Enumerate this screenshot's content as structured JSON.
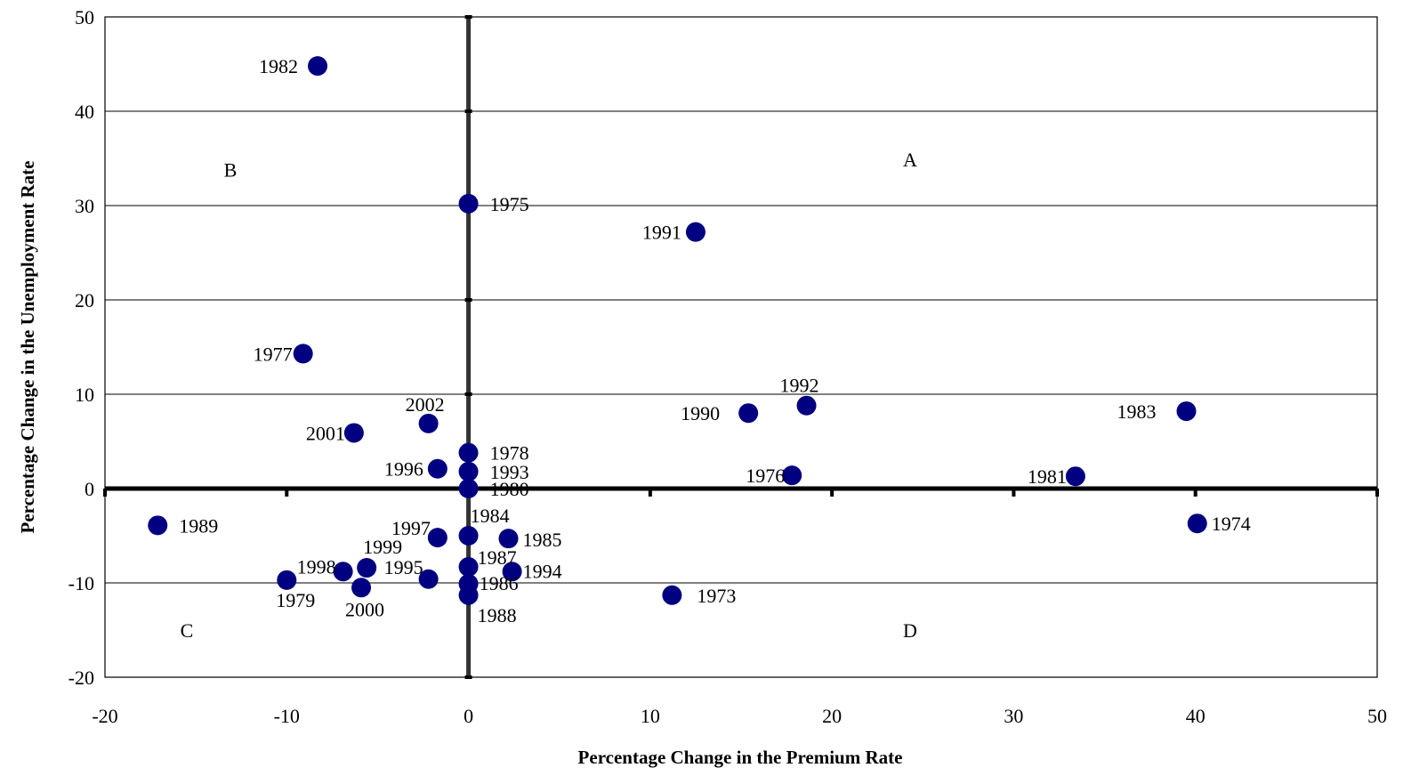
{
  "chart_data": {
    "type": "scatter",
    "title": "",
    "xlabel": "Percentage Change in the Premium Rate",
    "ylabel": "Percentage Change in the Unemployment Rate",
    "xlim": [
      -20,
      50
    ],
    "ylim": [
      -20,
      50
    ],
    "xticks": [
      "-20",
      "-10",
      "0",
      "10",
      "20",
      "30",
      "40",
      "50"
    ],
    "yticks": [
      "-20",
      "-10",
      "0",
      "10",
      "20",
      "30",
      "40",
      "50"
    ],
    "grid": "horizontal",
    "legend": "none",
    "marker_color": "#000080",
    "points": [
      {
        "label": "1982",
        "x": -8.3,
        "y": 44.8
      },
      {
        "label": "1975",
        "x": 0,
        "y": 30.2
      },
      {
        "label": "1991",
        "x": 12.5,
        "y": 27.2
      },
      {
        "label": "1977",
        "x": -9.1,
        "y": 14.3
      },
      {
        "label": "2002",
        "x": -2.2,
        "y": 6.9
      },
      {
        "label": "2001",
        "x": -6.3,
        "y": 5.9
      },
      {
        "label": "1992",
        "x": 18.6,
        "y": 8.8
      },
      {
        "label": "1990",
        "x": 15.4,
        "y": 8.0
      },
      {
        "label": "1983",
        "x": 39.5,
        "y": 8.2
      },
      {
        "label": "1978",
        "x": 0,
        "y": 3.8
      },
      {
        "label": "1996",
        "x": -1.7,
        "y": 2.1
      },
      {
        "label": "1993",
        "x": 0,
        "y": 1.8
      },
      {
        "label": "1980",
        "x": 0,
        "y": 0
      },
      {
        "label": "1976",
        "x": 17.8,
        "y": 1.4
      },
      {
        "label": "1981",
        "x": 33.4,
        "y": 1.3
      },
      {
        "label": "1989",
        "x": -17.1,
        "y": -3.9
      },
      {
        "label": "1974",
        "x": 40.1,
        "y": -3.7
      },
      {
        "label": "1997",
        "x": -1.7,
        "y": -5.2
      },
      {
        "label": "1984",
        "x": 0,
        "y": -5.0
      },
      {
        "label": "1985",
        "x": 2.2,
        "y": -5.3
      },
      {
        "label": "1999",
        "x": -5.6,
        "y": -8.4
      },
      {
        "label": "1998",
        "x": -6.9,
        "y": -8.8
      },
      {
        "label": "1987",
        "x": 0,
        "y": -8.3
      },
      {
        "label": "1994",
        "x": 2.4,
        "y": -8.8
      },
      {
        "label": "1995",
        "x": -2.2,
        "y": -9.6
      },
      {
        "label": "1979",
        "x": -10.0,
        "y": -9.7
      },
      {
        "label": "2000",
        "x": -5.9,
        "y": -10.5
      },
      {
        "label": "1986",
        "x": 0,
        "y": -10.1
      },
      {
        "label": "1988",
        "x": 0,
        "y": -11.3
      },
      {
        "label": "1973",
        "x": 11.2,
        "y": -11.3
      }
    ],
    "annotations": [
      {
        "text": "A",
        "x": 24.3,
        "y": 34.9
      },
      {
        "text": "B",
        "x": -13.1,
        "y": 33.8
      },
      {
        "text": "C",
        "x": -15.5,
        "y": -15.0
      },
      {
        "text": "D",
        "x": 24.3,
        "y": -15.0
      }
    ]
  }
}
